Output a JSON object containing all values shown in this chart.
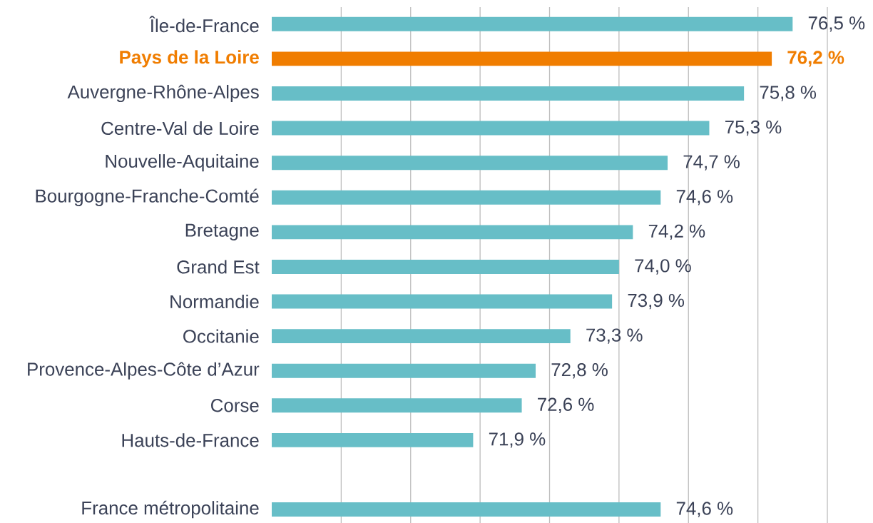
{
  "chart_data": {
    "type": "bar",
    "orientation": "horizontal",
    "categories": [
      "Île-de-France",
      "Pays de la Loire",
      "Auvergne-Rhône-Alpes",
      "Centre-Val de Loire",
      "Nouvelle-Aquitaine",
      "Bourgogne-Franche-Comté",
      "Bretagne",
      "Grand Est",
      "Normandie",
      "Occitanie",
      "Provence-Alpes-Côte d’Azur",
      "Corse",
      "Hauts-de-France",
      null,
      "France métropolitaine"
    ],
    "values": [
      76.5,
      76.2,
      75.8,
      75.3,
      74.7,
      74.6,
      74.2,
      74.0,
      73.9,
      73.3,
      72.8,
      72.6,
      71.9,
      null,
      74.6
    ],
    "colors": [
      "#67bec7",
      "#f07d00",
      "#67bec7",
      "#67bec7",
      "#67bec7",
      "#67bec7",
      "#67bec7",
      "#67bec7",
      "#67bec7",
      "#67bec7",
      "#67bec7",
      "#67bec7",
      "#67bec7",
      "#67bec7",
      "#67bec7"
    ],
    "value_labels": [
      "76,5 %",
      "76,2 %",
      "75,8 %",
      "75,3 %",
      "74,7 %",
      "74,6 %",
      "74,2 %",
      "74,0 %",
      "73,9 %",
      "73,3 %",
      "72,8 %",
      "72,6 %",
      "71,9 %",
      null,
      "74,6 %"
    ],
    "xlim": [
      69,
      77
    ],
    "xticks": [
      {
        "value": 70,
        "label": null
      },
      {
        "value": 71,
        "label": null
      },
      {
        "value": 72,
        "label": null
      },
      {
        "value": 73,
        "label": null
      },
      {
        "value": 74,
        "label": null
      },
      {
        "value": 75,
        "label": null
      },
      {
        "value": 76,
        "label": null
      },
      {
        "value": 77,
        "label": null
      }
    ],
    "grid": "x",
    "tick_labels": "y"
  }
}
